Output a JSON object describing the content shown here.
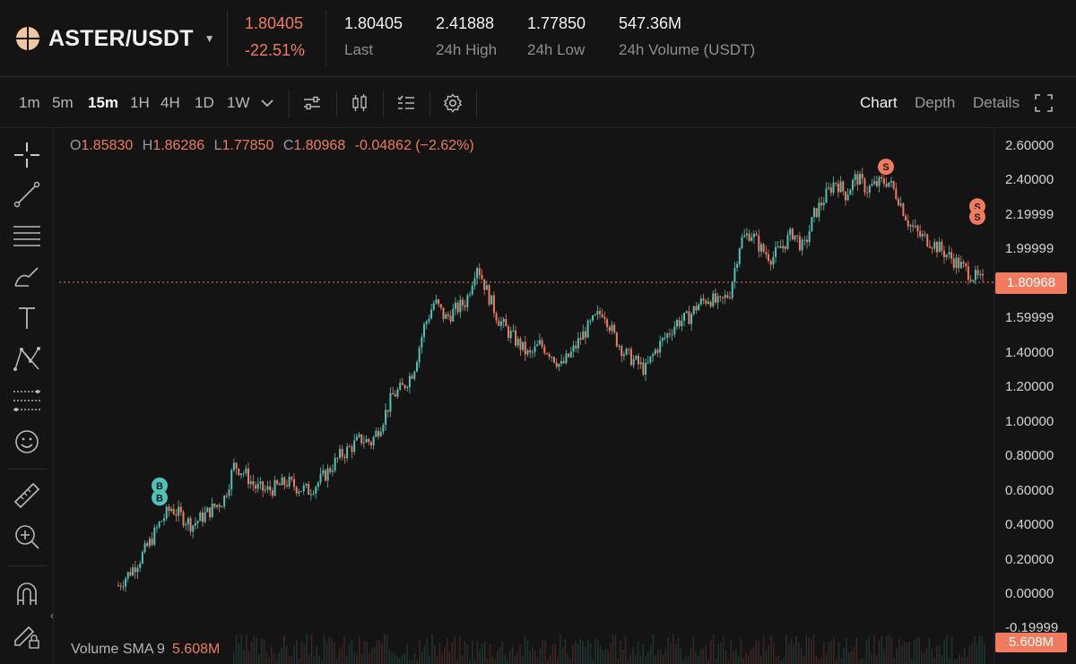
{
  "header": {
    "pair": "ASTER/USDT",
    "last_price": "1.80405",
    "change_pct": "-22.51%",
    "stats": [
      {
        "value": "1.80405",
        "label": "Last"
      },
      {
        "value": "2.41888",
        "label": "24h High"
      },
      {
        "value": "1.77850",
        "label": "24h Low"
      },
      {
        "value": "547.36M",
        "label": "24h Volume (USDT)"
      }
    ]
  },
  "toolbar": {
    "timeframes": [
      "1m",
      "5m",
      "15m",
      "1H",
      "4H",
      "1D",
      "1W"
    ],
    "active_timeframe": "15m",
    "tabs": [
      "Chart",
      "Depth",
      "Details"
    ],
    "active_tab": "Chart"
  },
  "ohlc": {
    "o_label": "O",
    "o": "1.85830",
    "h_label": "H",
    "h": "1.86286",
    "l_label": "L",
    "l": "1.77850",
    "c_label": "C",
    "c": "1.80968",
    "change": "-0.04862 (−2.62%)"
  },
  "chart_data": {
    "type": "line",
    "ylim": [
      -0.2,
      2.7
    ],
    "y_ticks": [
      "2.60000",
      "2.40000",
      "2.19999",
      "1.99999",
      "1.79999",
      "1.59999",
      "1.40000",
      "1.20000",
      "1.00000",
      "0.80000",
      "0.60000",
      "0.40000",
      "0.20000",
      "0.00000",
      "-0.19999"
    ],
    "current_price": "1.80968",
    "series": [
      {
        "values": [
          0.05,
          0.12,
          0.2,
          0.3,
          0.42,
          0.5,
          0.45,
          0.4,
          0.45,
          0.5,
          0.55,
          0.75,
          0.7,
          0.62,
          0.6,
          0.62,
          0.65,
          0.62,
          0.6,
          0.65,
          0.72,
          0.8,
          0.85,
          0.9,
          0.88,
          1.0,
          1.15,
          1.2,
          1.3,
          1.55,
          1.7,
          1.6,
          1.65,
          1.7,
          1.92,
          1.75,
          1.6,
          1.52,
          1.45,
          1.38,
          1.45,
          1.4,
          1.32,
          1.4,
          1.5,
          1.58,
          1.65,
          1.5,
          1.4,
          1.35,
          1.3,
          1.42,
          1.5,
          1.58,
          1.6,
          1.68,
          1.72,
          1.68,
          1.75,
          2.05,
          2.1,
          2.0,
          1.95,
          2.02,
          2.1,
          2.0,
          2.2,
          2.3,
          2.4,
          2.32,
          2.42,
          2.35,
          2.38,
          2.4,
          2.3,
          2.15,
          2.08,
          2.05,
          2.0,
          1.95,
          1.9,
          1.85,
          1.81
        ]
      }
    ],
    "markers": [
      {
        "type": "buy",
        "label": "B"
      },
      {
        "type": "buy",
        "label": "B"
      },
      {
        "type": "sell",
        "label": "S"
      },
      {
        "type": "sell",
        "label": "S"
      },
      {
        "type": "sell",
        "label": "S"
      }
    ]
  },
  "volume": {
    "label": "Volume SMA 9",
    "value": "5.608M",
    "tag": "5.608M"
  },
  "colors": {
    "up": "#4fc3b5",
    "down": "#f07b5f",
    "background": "#141414"
  },
  "icons": [
    "crosshair-icon",
    "trendline-icon",
    "horizontal-lines-icon",
    "brush-icon",
    "text-icon",
    "pattern-icon",
    "fib-lines-icon",
    "emoji-icon",
    "ruler-icon",
    "zoom-in-icon",
    "magnet-icon",
    "lock-pencil-icon",
    "indicators-icon",
    "candle-type-icon",
    "list-icon",
    "settings-icon",
    "fullscreen-icon"
  ]
}
